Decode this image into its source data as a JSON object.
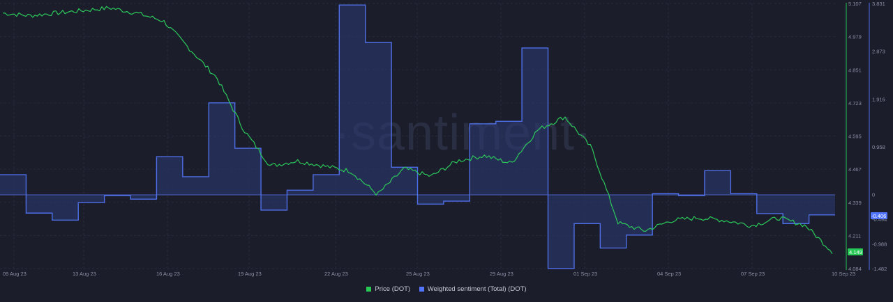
{
  "watermark": "·santiment·",
  "legend": {
    "items": [
      {
        "label": "Price (DOT)",
        "color": "#26c953"
      },
      {
        "label": "Weighted sentiment (Total) (DOT)",
        "color": "#5275ff"
      }
    ]
  },
  "axes": {
    "price_ticks": [
      "5.107",
      "4.979",
      "4.851",
      "4.723",
      "4.595",
      "4.467",
      "4.339",
      "4.211",
      "4.084"
    ],
    "sentiment_ticks": [
      "3.831",
      "2.873",
      "1.916",
      "0.958",
      "0",
      "-0.494",
      "-0.988",
      "-1.482"
    ],
    "x_ticks": [
      "09 Aug 23",
      "13 Aug 23",
      "16 Aug 23",
      "19 Aug 23",
      "22 Aug 23",
      "25 Aug 23",
      "29 Aug 23",
      "01 Sep 23",
      "04 Sep 23",
      "07 Sep 23",
      "10 Sep 23"
    ],
    "price_last_badge": "4.149",
    "sentiment_last_badge": "-0.406"
  },
  "chart_data": {
    "type": "line",
    "title": "",
    "xlabel": "",
    "ylabel": "",
    "grid": true,
    "legend_position": "bottom",
    "categories": [
      "09 Aug 23",
      "10 Aug 23",
      "11 Aug 23",
      "12 Aug 23",
      "13 Aug 23",
      "14 Aug 23",
      "15 Aug 23",
      "16 Aug 23",
      "17 Aug 23",
      "18 Aug 23",
      "19 Aug 23",
      "20 Aug 23",
      "21 Aug 23",
      "22 Aug 23",
      "23 Aug 23",
      "24 Aug 23",
      "25 Aug 23",
      "26 Aug 23",
      "27 Aug 23",
      "28 Aug 23",
      "29 Aug 23",
      "30 Aug 23",
      "31 Aug 23",
      "01 Sep 23",
      "02 Sep 23",
      "03 Sep 23",
      "04 Sep 23",
      "05 Sep 23",
      "06 Sep 23",
      "07 Sep 23",
      "08 Sep 23",
      "09 Sep 23"
    ],
    "series": [
      {
        "name": "Price (DOT)",
        "axis": "left-inner",
        "ylim": [
          4.084,
          5.107
        ],
        "values": [
          5.07,
          5.06,
          5.07,
          5.08,
          5.09,
          5.07,
          5.04,
          4.93,
          4.82,
          4.62,
          4.48,
          4.5,
          4.48,
          4.46,
          4.37,
          4.47,
          4.44,
          4.5,
          4.52,
          4.49,
          4.62,
          4.67,
          4.55,
          4.26,
          4.23,
          4.27,
          4.28,
          4.27,
          4.25,
          4.28,
          4.25,
          4.149
        ]
      },
      {
        "name": "Weighted sentiment (Total) (DOT)",
        "axis": "right",
        "ylim": [
          -1.482,
          3.831
        ],
        "values": [
          0.4,
          -0.37,
          -0.51,
          -0.16,
          -0.02,
          -0.09,
          0.76,
          0.36,
          1.84,
          0.93,
          -0.31,
          0.09,
          0.4,
          3.8,
          3.05,
          0.55,
          -0.19,
          -0.13,
          1.42,
          1.47,
          2.94,
          -1.48,
          -0.58,
          -1.07,
          -0.81,
          0.02,
          -0.02,
          0.48,
          0.02,
          -0.38,
          -0.58,
          -0.406
        ]
      }
    ]
  }
}
